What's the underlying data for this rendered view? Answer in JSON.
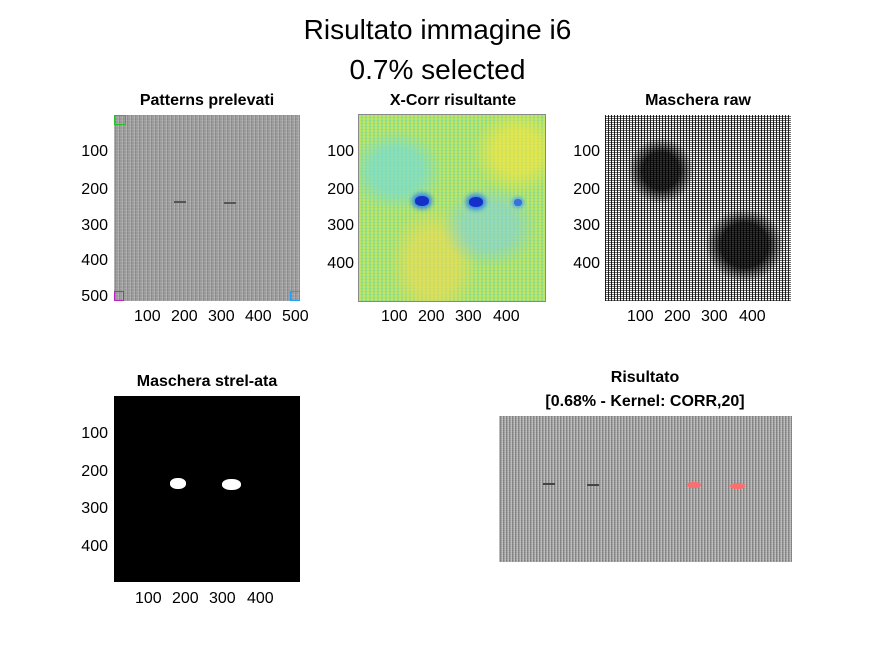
{
  "figure": {
    "title_line1": "Risultato immagine i6",
    "title_line2": "0.7% selected"
  },
  "panels": {
    "patterns": {
      "title": "Patterns prelevati",
      "yticks": [
        "100",
        "200",
        "300",
        "400",
        "500"
      ],
      "xticks": [
        "100",
        "200",
        "300",
        "400",
        "500"
      ]
    },
    "xcorr": {
      "title": "X-Corr risultante",
      "yticks": [
        "100",
        "200",
        "300",
        "400"
      ],
      "xticks": [
        "100",
        "200",
        "300",
        "400"
      ],
      "colormap": "parula"
    },
    "raw": {
      "title": "Maschera raw",
      "yticks": [
        "100",
        "200",
        "300",
        "400"
      ],
      "xticks": [
        "100",
        "200",
        "300",
        "400"
      ]
    },
    "strel": {
      "title": "Maschera strel-ata",
      "yticks": [
        "100",
        "200",
        "300",
        "400"
      ],
      "xticks": [
        "100",
        "200",
        "300",
        "400"
      ]
    },
    "result": {
      "title_line1": "Risultato",
      "title_line2": "[0.68% - Kernel: CORR,20]",
      "highlight_color": "#ff6666"
    }
  }
}
